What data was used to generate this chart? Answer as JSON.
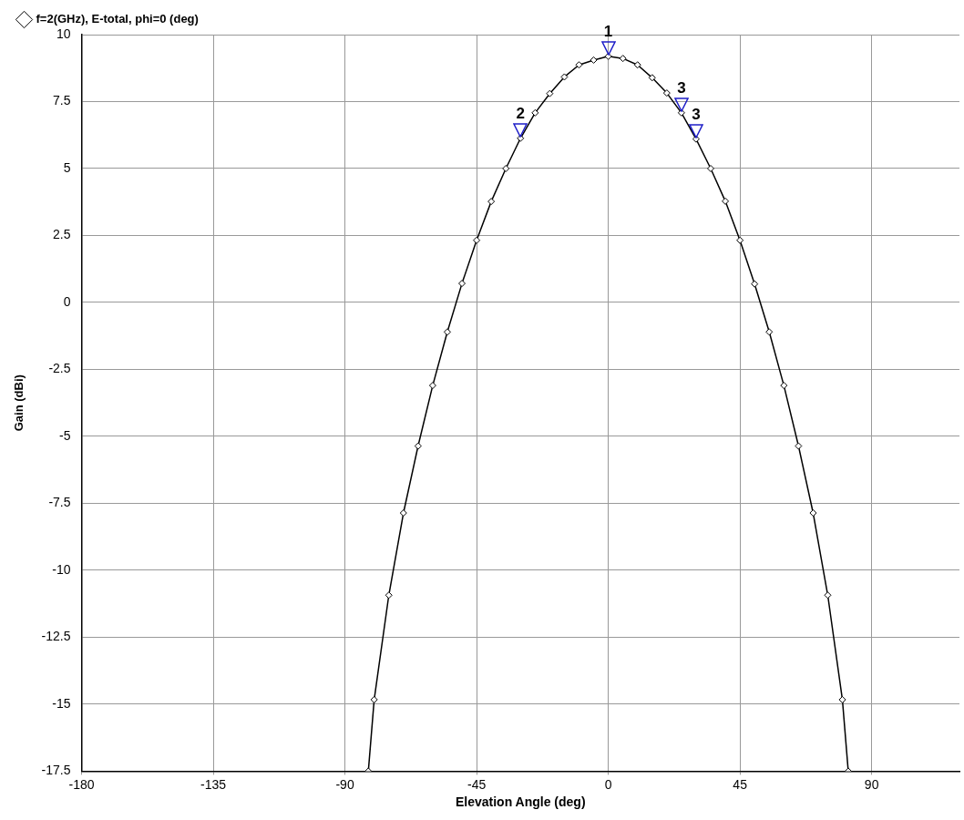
{
  "chart_data": {
    "type": "line",
    "xlabel": "Elevation Angle (deg)",
    "ylabel": "Gain (dBi)",
    "x": [
      -82,
      -80,
      -75,
      -70,
      -65,
      -60,
      -55,
      -50,
      -45,
      -40,
      -35,
      -30,
      -25,
      -20,
      -15,
      -10,
      -5,
      0,
      5,
      10,
      15,
      20,
      25,
      30,
      35,
      40,
      45,
      50,
      55,
      60,
      65,
      70,
      75,
      80,
      82
    ],
    "series": [
      {
        "name": "f=2(GHz), E-total, phi=0 (deg)",
        "color": "#000000",
        "values": [
          -17.5,
          -14.83,
          -10.93,
          -7.86,
          -5.36,
          -3.1,
          -1.1,
          0.71,
          2.32,
          3.77,
          5.0,
          6.13,
          7.08,
          7.8,
          8.42,
          8.87,
          9.05,
          9.19,
          9.11,
          8.87,
          8.39,
          7.82,
          7.08,
          6.1,
          5.0,
          3.78,
          2.32,
          0.69,
          -1.1,
          -3.1,
          -5.36,
          -7.86,
          -10.93,
          -14.83,
          -17.5
        ]
      }
    ],
    "annotations": [
      {
        "text": "1",
        "x": 0,
        "y": 9.19
      },
      {
        "text": "2",
        "x": -30,
        "y": 6.13
      },
      {
        "text": "3",
        "x": 30,
        "y": 6.1
      },
      {
        "text": "3",
        "x": 25,
        "y": 7.08
      }
    ],
    "xlim": [
      -180,
      120
    ],
    "xticks": [
      -180,
      -135,
      -90,
      -45,
      0,
      45,
      90
    ],
    "ylim": [
      -17.5,
      10
    ],
    "yticks": [
      -17.5,
      -15,
      -12.5,
      -10,
      -7.5,
      -5,
      -2.5,
      0,
      2.5,
      5,
      7.5,
      10
    ],
    "grid": true,
    "legend": "top left",
    "marker": "diamond",
    "line_style": "solid"
  }
}
